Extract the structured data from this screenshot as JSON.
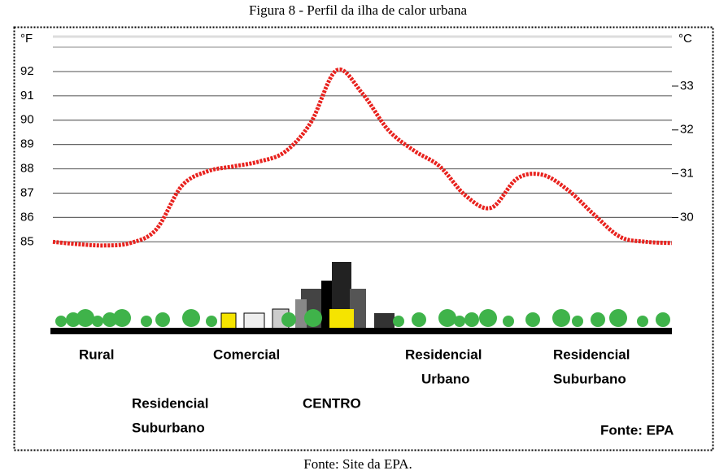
{
  "chart_data": {
    "type": "line",
    "title": "Figura 8 - Perfil da ilha de calor urbana",
    "caption": "Fonte: Site da EPA.",
    "y_label": "°F",
    "y2_label": "°C",
    "categories": [
      null,
      null,
      null,
      null,
      null,
      null,
      null,
      null,
      null,
      null,
      null,
      null,
      null,
      null,
      null,
      null,
      null,
      null,
      null,
      null,
      null,
      null,
      null,
      null,
      null
    ],
    "values": [
      85.0,
      84.9,
      84.85,
      84.95,
      85.5,
      87.3,
      87.9,
      88.1,
      88.3,
      88.7,
      89.9,
      92.05,
      91.1,
      89.6,
      88.75,
      88.1,
      86.9,
      86.4,
      87.6,
      87.75,
      87.1,
      86.1,
      85.2,
      85.0,
      84.95
    ],
    "color": "#e8221e",
    "ylim": [
      81.3,
      93
    ],
    "yticks": [
      85,
      86,
      87,
      88,
      89,
      90,
      91,
      92
    ],
    "y2lim": [
      27.39,
      33.89
    ],
    "y2ticks": [
      30,
      31,
      32,
      33
    ],
    "grid": true,
    "annotations": [
      [
        "Rural"
      ],
      [
        "Comercial"
      ],
      [
        "Residencial",
        "Urbano"
      ],
      [
        "Residencial",
        "Suburbano"
      ],
      [
        "Residencial",
        "Suburbano"
      ],
      [
        "CENTRO"
      ],
      [
        "Fonte: EPA"
      ]
    ]
  }
}
